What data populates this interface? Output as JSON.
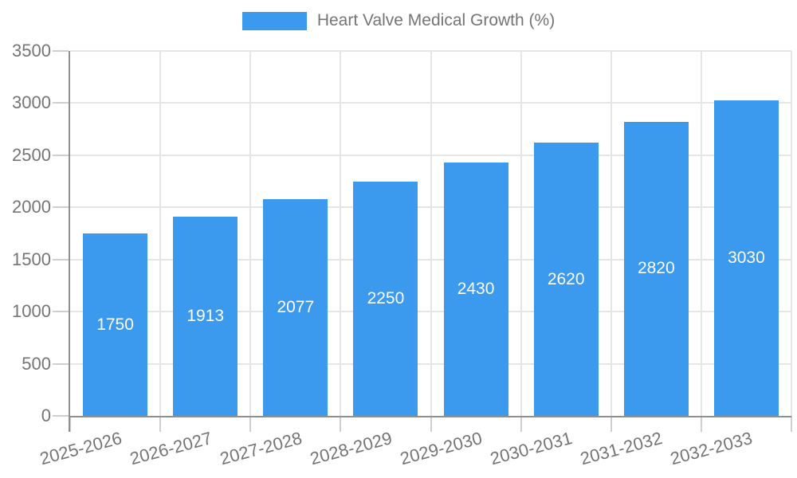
{
  "legend": {
    "label": "Heart Valve Medical Growth (%)"
  },
  "chart_data": {
    "type": "bar",
    "title": "Heart Valve Medical Growth (%)",
    "series_name": "Heart Valve Medical Growth (%)",
    "categories": [
      "2025-2026",
      "2026-2027",
      "2027-2028",
      "2028-2029",
      "2029-2030",
      "2030-2031",
      "2031-2032",
      "2032-2033"
    ],
    "values": [
      1750,
      1913,
      2077,
      2250,
      2430,
      2620,
      2820,
      3030
    ],
    "value_labels_shown": true,
    "xlabel": "",
    "ylabel": "",
    "ylim": [
      0,
      3500
    ],
    "ytick_step": 500,
    "ytick_labels": [
      "0",
      "500",
      "1000",
      "1500",
      "2000",
      "2500",
      "3000",
      "3500"
    ],
    "grid": true,
    "legend_position": "top",
    "colors": {
      "bar": "#3b99ee",
      "value_label": "#ffffff",
      "axis_text": "#757575",
      "axis_line": "#8f8f8f",
      "gridline": "#e5e5e5",
      "tick": "#cfcfcf",
      "background": "#ffffff"
    }
  }
}
